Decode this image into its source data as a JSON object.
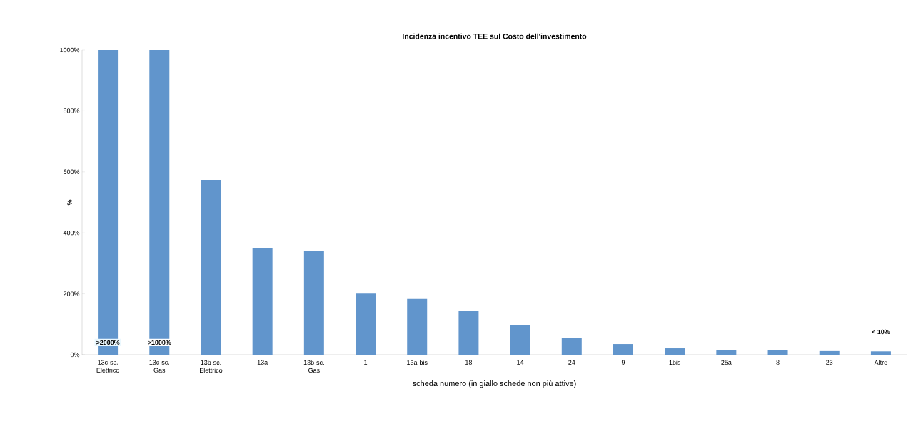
{
  "chart_data": {
    "type": "bar",
    "title": "Incidenza incentivo TEE sul Costo dell'investimento",
    "xlabel": "scheda numero (in giallo schede non più attive)",
    "ylabel": "%",
    "categories": [
      "13c-sc. Elettrico",
      "13c-sc. Gas",
      "13b-sc. Elettrico",
      "13a",
      "13b-sc. Gas",
      "1",
      "13a bis",
      "18",
      "14",
      "24",
      "9",
      "1bis",
      "25a",
      "8",
      "23",
      "Altre"
    ],
    "values": [
      1000,
      1000,
      574,
      349,
      342,
      201,
      183,
      143,
      98,
      56,
      35,
      21,
      14,
      14,
      12,
      11
    ],
    "color": "#6195cc",
    "ylim": [
      0,
      1000
    ],
    "yticks": [
      {
        "value": 0,
        "label": "0%"
      },
      {
        "value": 200,
        "label": "200%"
      },
      {
        "value": 400,
        "label": "400%"
      },
      {
        "value": 600,
        "label": "600%"
      },
      {
        "value": 800,
        "label": "800%"
      },
      {
        "value": 1000,
        "label": "1000%"
      }
    ],
    "annotations": [
      ">2000%",
      ">1000%",
      "< 10%"
    ]
  }
}
